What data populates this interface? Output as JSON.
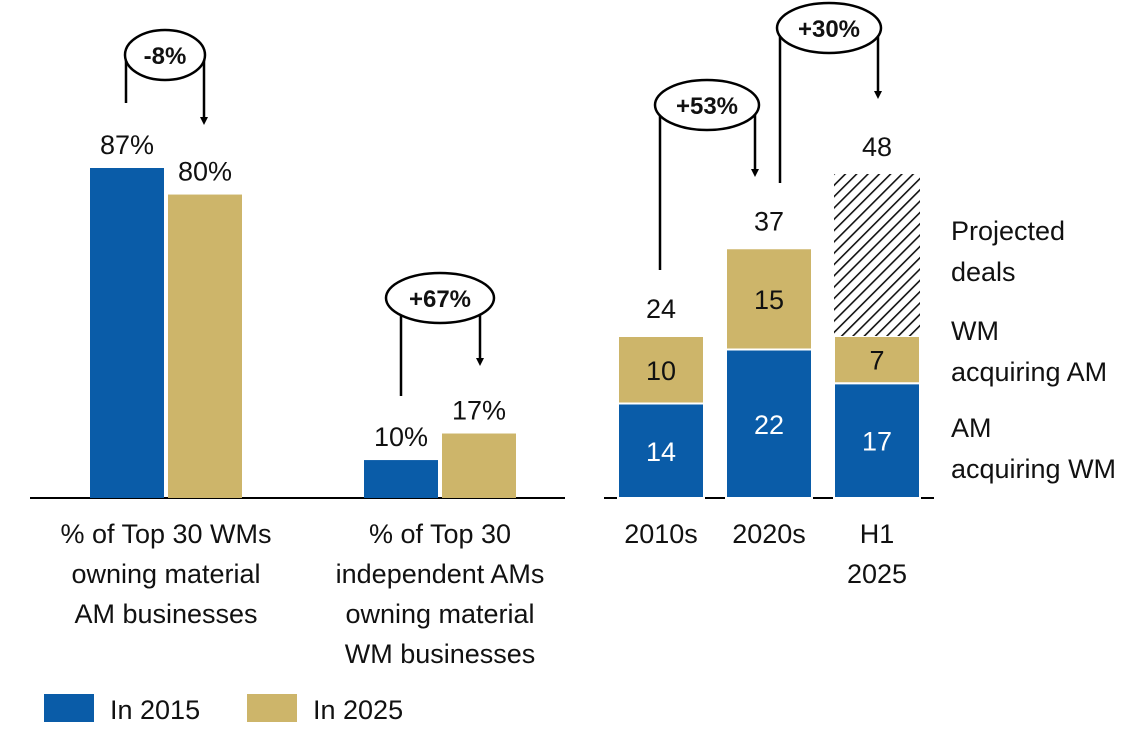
{
  "colors": {
    "blue": "#0a5ca8",
    "gold": "#cdb56a",
    "hatch": "#111111",
    "axis": "#000000"
  },
  "chart_data": [
    {
      "type": "bar",
      "categories": [
        "% of Top 30 WMs owning material AM businesses",
        "% of Top 30 independent AMs owning material WM businesses"
      ],
      "category_lines": [
        [
          "% of Top 30 WMs",
          "owning material",
          "AM businesses"
        ],
        [
          "% of Top 30",
          "independent AMs",
          "owning material",
          "WM businesses"
        ]
      ],
      "series": [
        {
          "name": "In 2015",
          "values": [
            87,
            10
          ],
          "labels": [
            "87%",
            "10%"
          ]
        },
        {
          "name": "In 2025",
          "values": [
            80,
            17
          ],
          "labels": [
            "80%",
            "17%"
          ]
        }
      ],
      "unit": "%",
      "ylim": [
        0,
        100
      ],
      "changes": [
        "-8%",
        "+67%"
      ]
    },
    {
      "type": "bar",
      "stacked": true,
      "categories": [
        "2010s",
        "2020s",
        "H1 2025"
      ],
      "category_lines": [
        [
          "2010s"
        ],
        [
          "2020s"
        ],
        [
          "H1",
          "2025"
        ]
      ],
      "series": [
        {
          "name": "AM acquiring WM",
          "values": [
            14,
            22,
            17
          ]
        },
        {
          "name": "WM acquiring AM",
          "values": [
            10,
            15,
            7
          ]
        },
        {
          "name": "Projected deals",
          "values": [
            0,
            0,
            24
          ]
        }
      ],
      "series_label_lines": [
        [
          "AM",
          "acquiring WM"
        ],
        [
          "WM",
          "acquiring AM"
        ],
        [
          "Projected",
          "deals"
        ]
      ],
      "totals": [
        24,
        37,
        48
      ],
      "changes": [
        "+53%",
        "+30%"
      ]
    }
  ],
  "legend": [
    {
      "label": "In 2015",
      "color": "#0a5ca8"
    },
    {
      "label": "In 2025",
      "color": "#cdb56a"
    }
  ]
}
